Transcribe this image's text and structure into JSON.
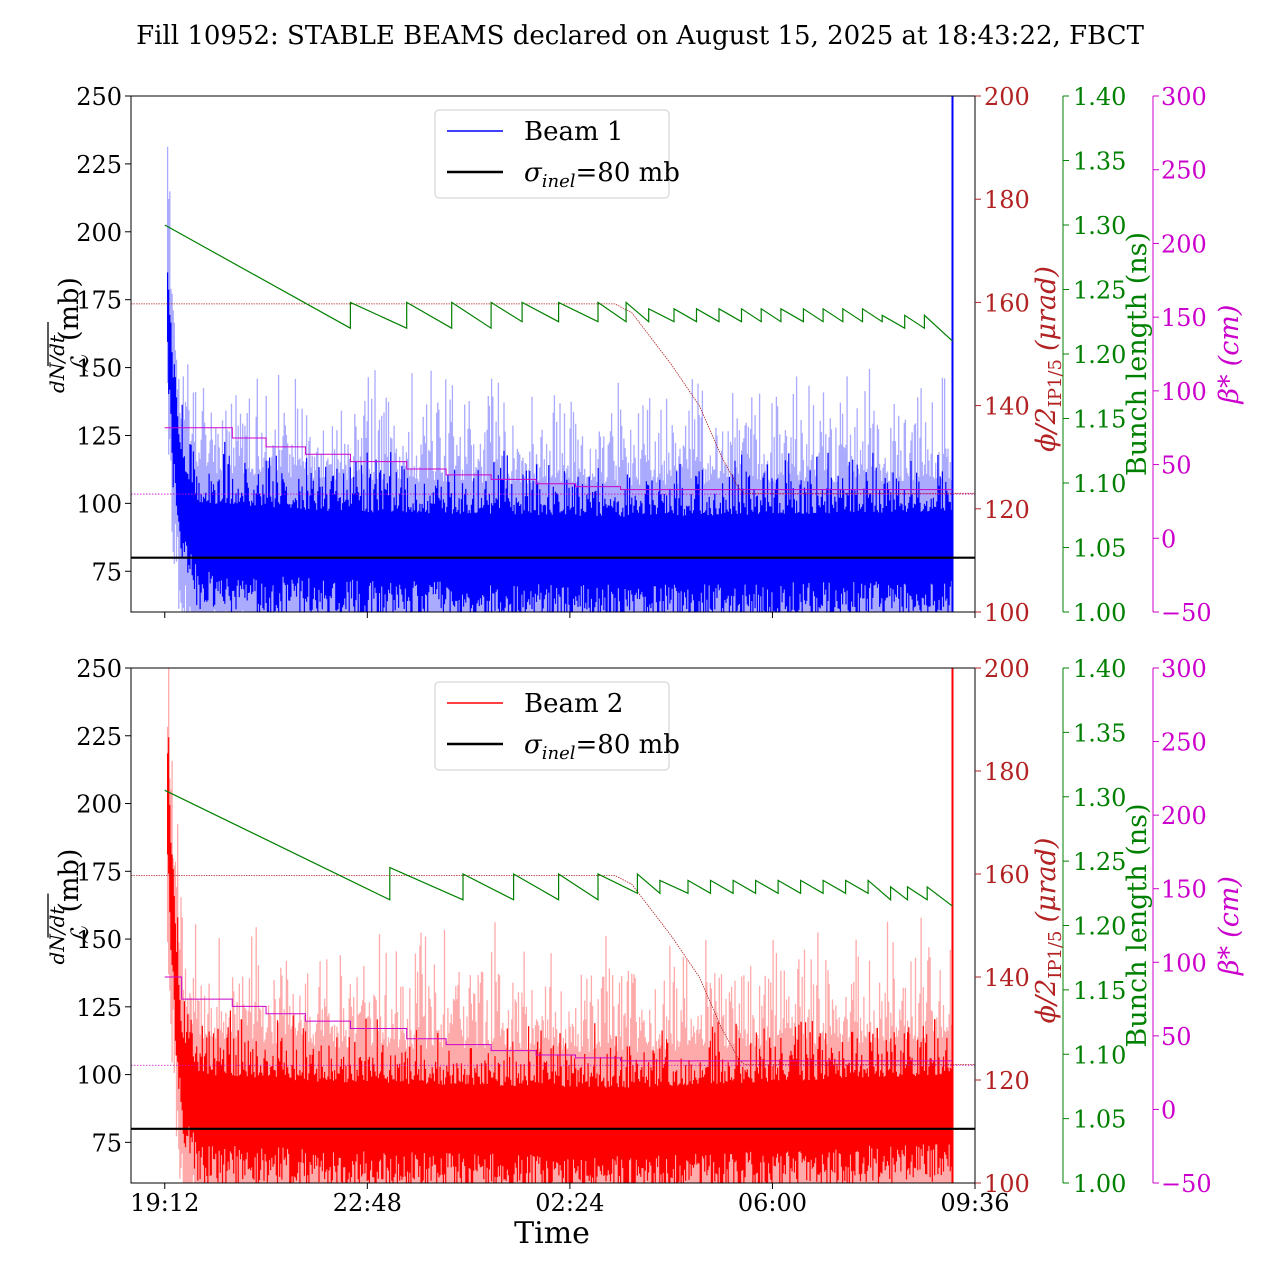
{
  "figure": {
    "title": "Fill 10952: STABLE BEAMS declared on August 15, 2025 at 18:43:22, FBCT",
    "xlabel": "Time",
    "x_ticks": [
      "19:12",
      "22:48",
      "02:24",
      "06:00",
      "09:36"
    ]
  },
  "colors": {
    "beam1": "#0000ff",
    "beam1_light": "#aaaaff",
    "beam2": "#ff0000",
    "beam2_light": "#ffaaaa",
    "crossing_angle": "#b22222",
    "bunch_length": "#008000",
    "beta_star": "#cc00cc",
    "reference": "#000000"
  },
  "axes": {
    "left": {
      "label_num": "dN/dt",
      "label_den": "ℒ",
      "label_unit": "(mb)",
      "range": [
        60,
        250
      ],
      "ticks": [
        "75",
        "100",
        "125",
        "150",
        "175",
        "200",
        "225",
        "250"
      ]
    },
    "crossing": {
      "label": "ϕ/2",
      "label_sub": "IP1/5",
      "label_unit": "(μrad)",
      "range": [
        100,
        200
      ],
      "ticks": [
        "100",
        "120",
        "140",
        "160",
        "180",
        "200"
      ]
    },
    "bunch": {
      "label": "Bunch length (ns)",
      "range": [
        1.0,
        1.4
      ],
      "ticks": [
        "1.00",
        "1.05",
        "1.10",
        "1.15",
        "1.20",
        "1.25",
        "1.30",
        "1.35",
        "1.40"
      ]
    },
    "beta": {
      "label": "β*",
      "label_unit": "(cm)",
      "range": [
        -50,
        300
      ],
      "ticks": [
        "−50",
        "0",
        "50",
        "100",
        "150",
        "200",
        "250",
        "300"
      ]
    }
  },
  "chart_data": [
    {
      "type": "line",
      "panel": "Beam 1",
      "legend": [
        "Beam 1",
        "σ",
        "inel",
        "=80 mb"
      ],
      "x_range_hours_since_19_12": [
        -0.6,
        14.4
      ],
      "reference_line_mb": 80,
      "series": [
        {
          "name": "Beam 1",
          "axis": "left",
          "baseline_mb": [
            [
              0.0,
              200
            ],
            [
              0.15,
              140
            ],
            [
              0.3,
              110
            ],
            [
              0.6,
              95
            ],
            [
              3.0,
              92
            ],
            [
              8.0,
              90
            ],
            [
              14.0,
              92
            ]
          ],
          "spread_mb": 25,
          "light_spread_mb": 55,
          "end_spike_mb": 250
        },
        {
          "name": "crossing angle",
          "axis": "crossing",
          "values": [
            [
              -0.6,
              159.7
            ],
            [
              8.0,
              159.7
            ],
            [
              8.3,
              158
            ],
            [
              9.0,
              148
            ],
            [
              9.5,
              140
            ],
            [
              9.9,
              130
            ],
            [
              10.2,
              124
            ],
            [
              10.3,
              123
            ],
            [
              14.4,
              123
            ]
          ]
        },
        {
          "name": "bunch length",
          "axis": "bunch",
          "values": [
            [
              0.0,
              1.3
            ],
            [
              3.3,
              1.22
            ],
            [
              3.3,
              1.24
            ],
            [
              4.3,
              1.22
            ],
            [
              4.3,
              1.24
            ],
            [
              5.1,
              1.22
            ],
            [
              5.1,
              1.24
            ],
            [
              5.8,
              1.22
            ],
            [
              5.8,
              1.24
            ],
            [
              6.35,
              1.225
            ],
            [
              6.35,
              1.24
            ],
            [
              7.0,
              1.225
            ],
            [
              7.0,
              1.24
            ],
            [
              7.7,
              1.225
            ],
            [
              7.7,
              1.24
            ],
            [
              8.2,
              1.225
            ],
            [
              8.2,
              1.24
            ],
            [
              8.6,
              1.225
            ],
            [
              8.6,
              1.235
            ],
            [
              9.05,
              1.225
            ],
            [
              9.05,
              1.235
            ],
            [
              9.45,
              1.225
            ],
            [
              9.45,
              1.235
            ],
            [
              9.85,
              1.225
            ],
            [
              9.85,
              1.235
            ],
            [
              10.25,
              1.225
            ],
            [
              10.25,
              1.235
            ],
            [
              10.6,
              1.225
            ],
            [
              10.6,
              1.235
            ],
            [
              10.95,
              1.225
            ],
            [
              10.95,
              1.235
            ],
            [
              11.35,
              1.225
            ],
            [
              11.35,
              1.235
            ],
            [
              11.7,
              1.225
            ],
            [
              11.7,
              1.235
            ],
            [
              12.05,
              1.225
            ],
            [
              12.05,
              1.235
            ],
            [
              12.4,
              1.225
            ],
            [
              12.4,
              1.235
            ],
            [
              12.75,
              1.225
            ],
            [
              12.75,
              1.23
            ],
            [
              13.15,
              1.22
            ],
            [
              13.15,
              1.23
            ],
            [
              13.5,
              1.22
            ],
            [
              13.5,
              1.23
            ],
            [
              14.0,
              1.21
            ]
          ]
        },
        {
          "name": "beta star",
          "axis": "beta",
          "values": [
            [
              0.0,
              75
            ],
            [
              0.5,
              75
            ],
            [
              1.2,
              68
            ],
            [
              1.8,
              62
            ],
            [
              2.5,
              57
            ],
            [
              3.3,
              52
            ],
            [
              4.3,
              47
            ],
            [
              5.0,
              43
            ],
            [
              5.8,
              40
            ],
            [
              6.6,
              37
            ],
            [
              7.3,
              35
            ],
            [
              8.1,
              33
            ],
            [
              14.0,
              33
            ]
          ]
        },
        {
          "name": "beta star reference",
          "axis": "beta",
          "values": [
            [
              -0.6,
              30
            ],
            [
              14.4,
              30
            ]
          ]
        }
      ]
    },
    {
      "type": "line",
      "panel": "Beam 2",
      "legend": [
        "Beam 2",
        "σ",
        "inel",
        "=80 mb"
      ],
      "x_range_hours_since_19_12": [
        -0.6,
        14.4
      ],
      "reference_line_mb": 80,
      "series": [
        {
          "name": "Beam 2",
          "axis": "left",
          "baseline_mb": [
            [
              0.0,
              235
            ],
            [
              0.15,
              160
            ],
            [
              0.3,
              110
            ],
            [
              0.6,
              95
            ],
            [
              3.0,
              92
            ],
            [
              8.0,
              90
            ],
            [
              14.0,
              95
            ]
          ],
          "spread_mb": 25,
          "light_spread_mb": 60,
          "end_spike_mb": 250
        },
        {
          "name": "crossing angle",
          "axis": "crossing",
          "values": [
            [
              -0.6,
              159.7
            ],
            [
              8.0,
              159.7
            ],
            [
              8.3,
              158
            ],
            [
              9.0,
              148
            ],
            [
              9.5,
              140
            ],
            [
              9.9,
              130
            ],
            [
              10.2,
              124
            ],
            [
              10.3,
              123
            ],
            [
              14.4,
              123
            ]
          ]
        },
        {
          "name": "bunch length",
          "axis": "bunch",
          "values": [
            [
              0.0,
              1.305
            ],
            [
              4.0,
              1.22
            ],
            [
              4.0,
              1.245
            ],
            [
              5.3,
              1.22
            ],
            [
              5.3,
              1.24
            ],
            [
              6.2,
              1.22
            ],
            [
              6.2,
              1.24
            ],
            [
              7.0,
              1.22
            ],
            [
              7.0,
              1.24
            ],
            [
              7.7,
              1.22
            ],
            [
              7.7,
              1.24
            ],
            [
              8.4,
              1.225
            ],
            [
              8.4,
              1.24
            ],
            [
              8.8,
              1.225
            ],
            [
              8.8,
              1.235
            ],
            [
              9.3,
              1.225
            ],
            [
              9.3,
              1.235
            ],
            [
              9.7,
              1.225
            ],
            [
              9.7,
              1.235
            ],
            [
              10.1,
              1.225
            ],
            [
              10.1,
              1.235
            ],
            [
              10.5,
              1.225
            ],
            [
              10.5,
              1.235
            ],
            [
              10.9,
              1.225
            ],
            [
              10.9,
              1.235
            ],
            [
              11.3,
              1.225
            ],
            [
              11.3,
              1.235
            ],
            [
              11.7,
              1.225
            ],
            [
              11.7,
              1.235
            ],
            [
              12.1,
              1.225
            ],
            [
              12.1,
              1.235
            ],
            [
              12.5,
              1.225
            ],
            [
              12.5,
              1.235
            ],
            [
              12.9,
              1.22
            ],
            [
              12.9,
              1.23
            ],
            [
              13.2,
              1.22
            ],
            [
              13.2,
              1.23
            ],
            [
              13.55,
              1.22
            ],
            [
              13.55,
              1.23
            ],
            [
              14.0,
              1.215
            ]
          ]
        },
        {
          "name": "beta star",
          "axis": "beta",
          "values": [
            [
              0.0,
              90
            ],
            [
              0.2,
              90
            ],
            [
              0.3,
              75
            ],
            [
              1.2,
              70
            ],
            [
              1.8,
              65
            ],
            [
              2.5,
              60
            ],
            [
              3.3,
              55
            ],
            [
              4.3,
              48
            ],
            [
              5.0,
              44
            ],
            [
              5.8,
              40
            ],
            [
              6.6,
              37
            ],
            [
              7.3,
              35
            ],
            [
              8.1,
              33
            ],
            [
              14.0,
              33
            ]
          ]
        },
        {
          "name": "beta star reference",
          "axis": "beta",
          "values": [
            [
              -0.6,
              30
            ],
            [
              14.4,
              30
            ]
          ]
        }
      ]
    }
  ]
}
